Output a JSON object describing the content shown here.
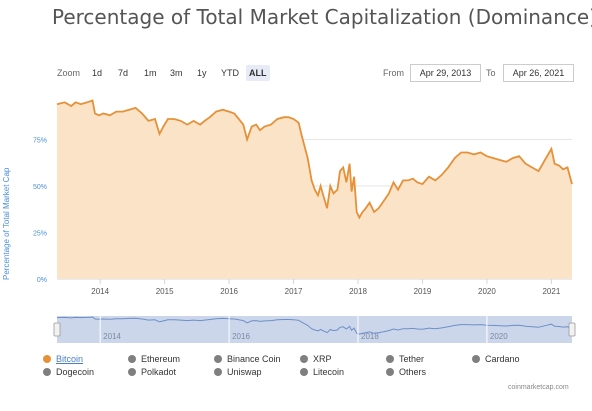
{
  "title": "Percentage of Total Market Capitalization (Dominance)",
  "zoom": {
    "label": "Zoom",
    "buttons": [
      {
        "label": "1d",
        "active": false
      },
      {
        "label": "7d",
        "active": false
      },
      {
        "label": "1m",
        "active": false
      },
      {
        "label": "3m",
        "active": false
      },
      {
        "label": "1y",
        "active": false
      },
      {
        "label": "YTD",
        "active": false
      },
      {
        "label": "ALL",
        "active": true
      }
    ]
  },
  "range": {
    "from_label": "From",
    "from_value": "Apr 29, 2013",
    "to_label": "To",
    "to_value": "Apr 26, 2021"
  },
  "colors": {
    "series_line": "#e69138",
    "series_fill": "#fbe3c8",
    "navigator_line": "#6c8fc7",
    "navigator_mask": "#ccd6eb",
    "legend_on": "#e69138",
    "legend_off": "#7f7f7f",
    "axis_label": "#4a90d9"
  },
  "legend": [
    {
      "label": "Bitcoin",
      "on": true
    },
    {
      "label": "Ethereum",
      "on": false
    },
    {
      "label": "Binance Coin",
      "on": false
    },
    {
      "label": "XRP",
      "on": false
    },
    {
      "label": "Tether",
      "on": false
    },
    {
      "label": "Cardano",
      "on": false
    },
    {
      "label": "Dogecoin",
      "on": false
    },
    {
      "label": "Polkadot",
      "on": false
    },
    {
      "label": "Uniswap",
      "on": false
    },
    {
      "label": "Litecoin",
      "on": false
    },
    {
      "label": "Others",
      "on": false
    }
  ],
  "credits": "coinmarketcap.com",
  "chart_data": {
    "type": "area",
    "title": "Percentage of Total Market Capitalization (Dominance)",
    "xlabel": "",
    "ylabel": "Percentage of Total Market Cap",
    "x_ticks": [
      "2014",
      "2015",
      "2016",
      "2017",
      "2018",
      "2019",
      "2020",
      "2021"
    ],
    "y_ticks": [
      "0%",
      "25%",
      "50%",
      "75%"
    ],
    "ylim": [
      0,
      100
    ],
    "xlim": [
      2013.33,
      2021.32
    ],
    "grid": true,
    "navigator_ticks": [
      "2014",
      "2016",
      "2018",
      "2020"
    ],
    "series": [
      {
        "name": "Bitcoin",
        "x": [
          2013.33,
          2013.45,
          2013.55,
          2013.62,
          2013.7,
          2013.8,
          2013.88,
          2013.92,
          2013.98,
          2014.05,
          2014.15,
          2014.25,
          2014.35,
          2014.45,
          2014.55,
          2014.65,
          2014.75,
          2014.85,
          2014.92,
          2014.98,
          2015.05,
          2015.15,
          2015.25,
          2015.35,
          2015.45,
          2015.55,
          2015.62,
          2015.7,
          2015.8,
          2015.9,
          2016.0,
          2016.08,
          2016.15,
          2016.22,
          2016.28,
          2016.35,
          2016.42,
          2016.48,
          2016.55,
          2016.65,
          2016.75,
          2016.85,
          2016.92,
          2017.0,
          2017.08,
          2017.12,
          2017.18,
          2017.22,
          2017.28,
          2017.33,
          2017.38,
          2017.42,
          2017.47,
          2017.52,
          2017.57,
          2017.62,
          2017.68,
          2017.72,
          2017.77,
          2017.82,
          2017.87,
          2017.9,
          2017.94,
          2017.98,
          2018.02,
          2018.07,
          2018.12,
          2018.18,
          2018.25,
          2018.32,
          2018.4,
          2018.48,
          2018.55,
          2018.62,
          2018.7,
          2018.78,
          2018.85,
          2018.92,
          2019.0,
          2019.1,
          2019.2,
          2019.3,
          2019.4,
          2019.5,
          2019.6,
          2019.7,
          2019.8,
          2019.9,
          2020.0,
          2020.1,
          2020.2,
          2020.3,
          2020.4,
          2020.5,
          2020.6,
          2020.7,
          2020.8,
          2020.9,
          2021.0,
          2021.05,
          2021.12,
          2021.18,
          2021.25,
          2021.32
        ],
        "values": [
          94,
          95,
          93,
          95,
          94,
          95,
          96,
          89,
          88,
          89,
          88,
          90,
          90,
          91,
          92,
          89,
          85,
          86,
          78,
          82,
          86,
          86,
          85,
          83,
          85,
          83,
          85,
          87,
          90,
          91,
          90,
          89,
          86,
          83,
          75,
          82,
          83,
          80,
          82,
          83,
          86,
          87,
          87,
          86,
          84,
          78,
          70,
          65,
          53,
          48,
          45,
          50,
          44,
          38,
          50,
          46,
          48,
          58,
          60,
          52,
          62,
          47,
          55,
          36,
          33,
          36,
          38,
          41,
          36,
          38,
          42,
          46,
          52,
          48,
          53,
          53,
          54,
          52,
          51,
          55,
          53,
          56,
          60,
          65,
          68,
          68,
          67,
          68,
          66,
          65,
          64,
          63,
          65,
          66,
          62,
          60,
          58,
          64,
          70,
          62,
          61,
          59,
          60,
          51
        ]
      }
    ]
  }
}
